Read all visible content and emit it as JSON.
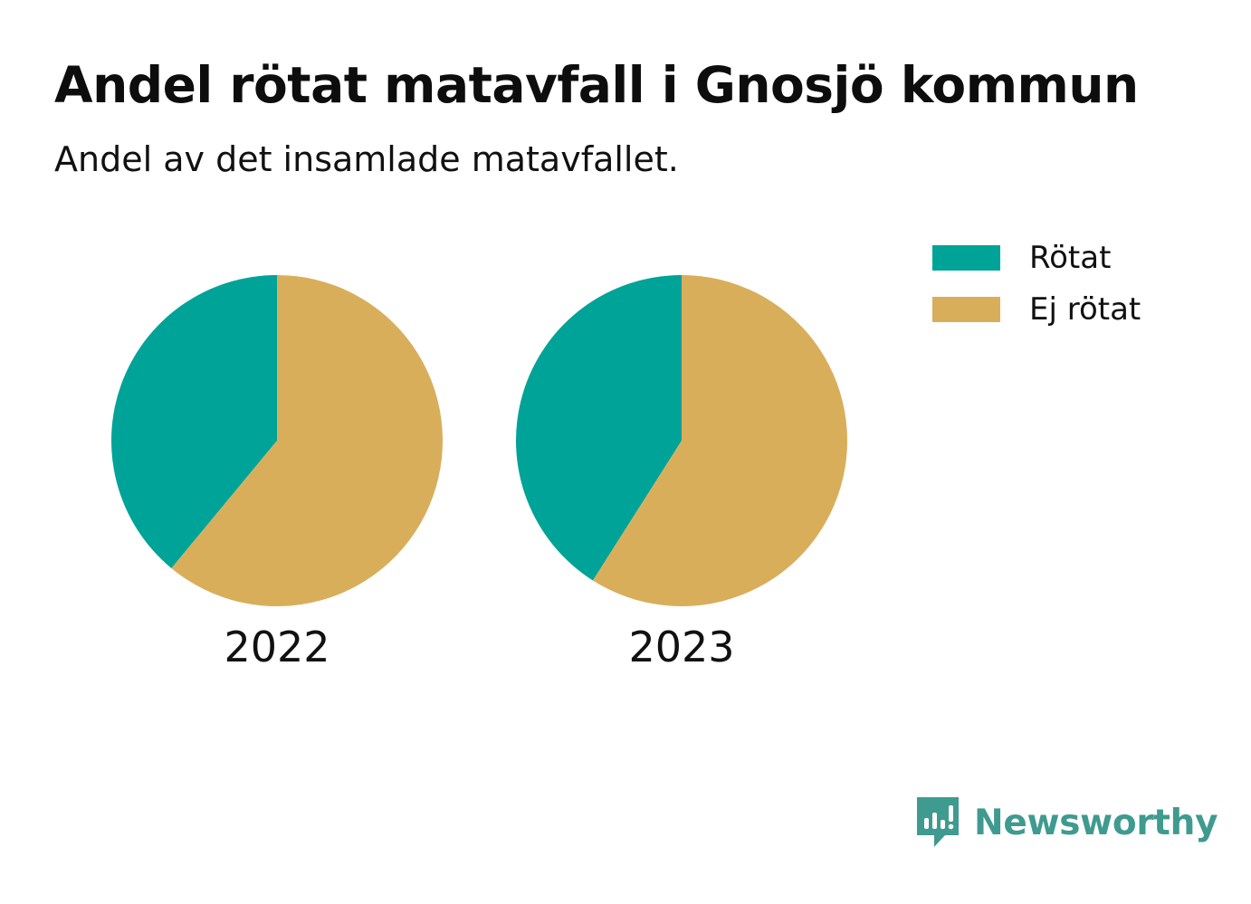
{
  "header": {
    "title": "Andel rötat matavfall i Gnosjö kommun",
    "subtitle": "Andel av det insamlade matavfallet."
  },
  "chart_data": [
    {
      "type": "pie",
      "label": "2022",
      "slices": [
        {
          "name": "Rötat",
          "value": 0.39,
          "color": "#00a398"
        },
        {
          "name": "Ej rötat",
          "value": 0.61,
          "color": "#d9ae5b"
        }
      ]
    },
    {
      "type": "pie",
      "label": "2023",
      "slices": [
        {
          "name": "Rötat",
          "value": 0.41,
          "color": "#00a398"
        },
        {
          "name": "Ej rötat",
          "value": 0.59,
          "color": "#d9ae5b"
        }
      ]
    }
  ],
  "legend": {
    "items": [
      {
        "label": "Rötat",
        "color": "#00a398"
      },
      {
        "label": "Ej rötat",
        "color": "#d9ae5b"
      }
    ],
    "placement": "top-right"
  },
  "brand": {
    "name": "Newsworthy",
    "icon": "newsworthy-logo-icon",
    "color": "#3f9a8f"
  }
}
